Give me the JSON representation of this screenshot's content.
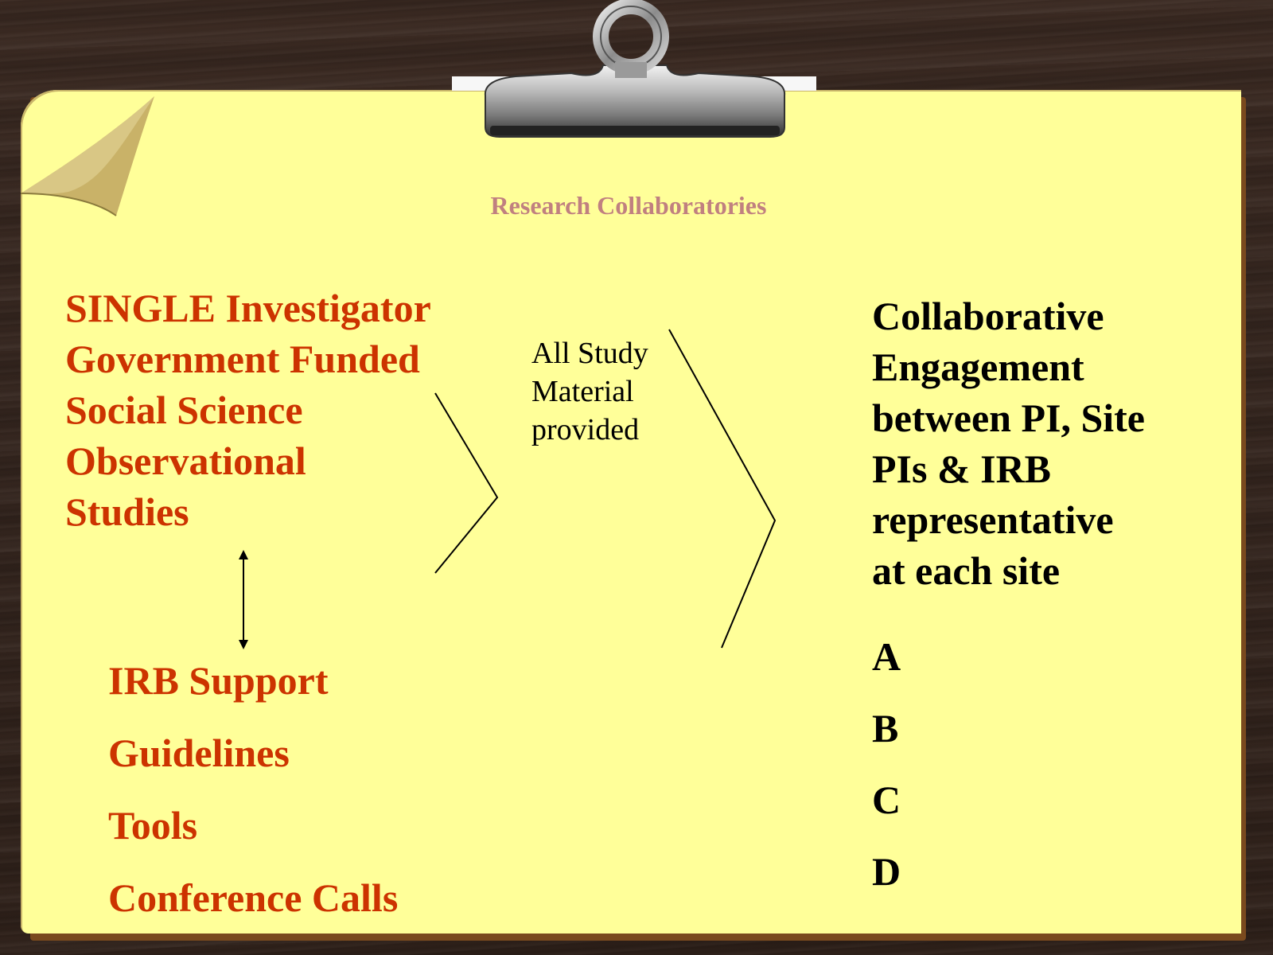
{
  "title": "Research Collaboratories",
  "left_block": {
    "lines": [
      "SINGLE Investigator",
      "Government Funded",
      "Social Science",
      "Observational",
      "Studies"
    ]
  },
  "support_list": {
    "items": [
      "IRB Support",
      "Guidelines",
      "Tools",
      "Conference Calls"
    ]
  },
  "middle_note": {
    "lines": [
      "All Study",
      "Material",
      "provided"
    ]
  },
  "right_block": {
    "lines": [
      "Collaborative",
      "Engagement",
      "between PI, Site",
      "PIs & IRB",
      "representative",
      "at each site"
    ]
  },
  "site_list": {
    "items": [
      "A",
      "B",
      "C",
      "D"
    ]
  },
  "colors": {
    "paper": "#ffff99",
    "accent_text": "#cc3300",
    "title_text": "#c08080",
    "body_text": "#000000"
  }
}
